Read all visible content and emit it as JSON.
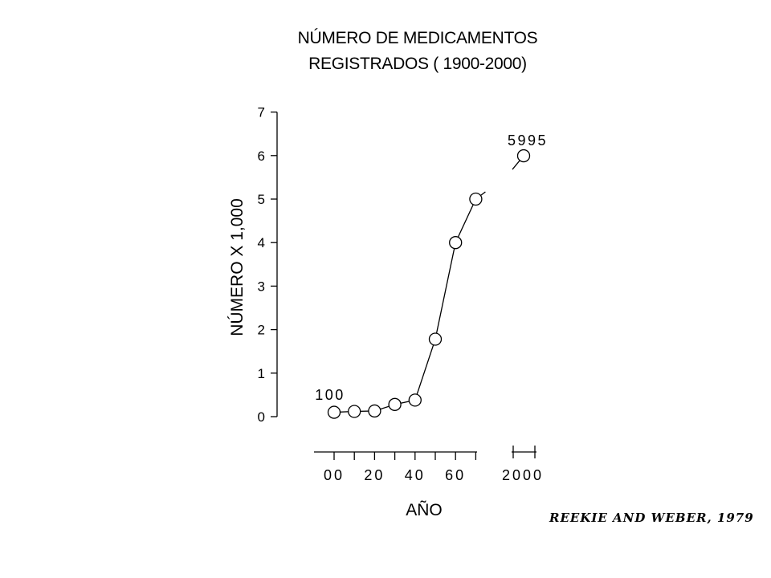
{
  "title": {
    "line1": "NÚMERO DE MEDICAMENTOS",
    "line2": "REGISTRADOS ( 1900-2000)"
  },
  "credit": "REEKIE AND WEBER, 1979",
  "chart_data": {
    "type": "line",
    "title": "NÚMERO DE MEDICAMENTOS REGISTRADOS ( 1900-2000)",
    "xlabel": "AÑO",
    "ylabel": "NÚMERO X 1,000",
    "x_axis_break": true,
    "ylim": [
      0,
      7
    ],
    "y_ticks": [
      "0",
      "1",
      "2",
      "3",
      "4",
      "5",
      "6",
      "7"
    ],
    "x_tick_labels": [
      "00",
      "20",
      "40",
      "60",
      "2000"
    ],
    "series": [
      {
        "x": [
          1900,
          1910,
          1920,
          1930,
          1940,
          1950,
          1960,
          1970,
          2000
        ],
        "y": [
          0.1,
          0.12,
          0.13,
          0.28,
          0.38,
          1.78,
          4.0,
          5.0,
          5.995
        ]
      }
    ],
    "annotations": [
      {
        "text": "100",
        "x": 1900,
        "y": 0.1
      },
      {
        "text": "5995",
        "x": 2000,
        "y": 5.995
      }
    ],
    "grid": false,
    "legend": "none"
  }
}
